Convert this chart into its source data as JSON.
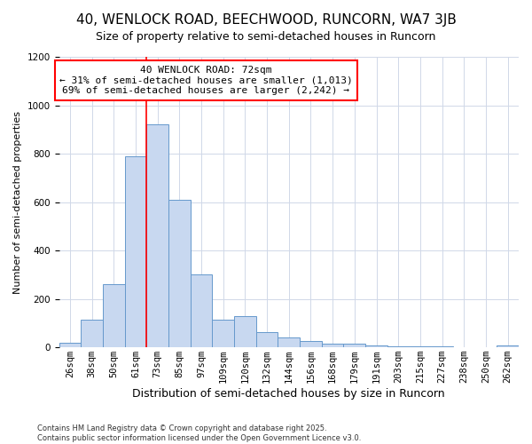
{
  "title": "40, WENLOCK ROAD, BEECHWOOD, RUNCORN, WA7 3JB",
  "subtitle": "Size of property relative to semi-detached houses in Runcorn",
  "xlabel": "Distribution of semi-detached houses by size in Runcorn",
  "ylabel": "Number of semi-detached properties",
  "bar_color": "#c8d8f0",
  "bar_edge_color": "#6699cc",
  "categories": [
    "26sqm",
    "38sqm",
    "50sqm",
    "61sqm",
    "73sqm",
    "85sqm",
    "97sqm",
    "109sqm",
    "120sqm",
    "132sqm",
    "144sqm",
    "156sqm",
    "168sqm",
    "179sqm",
    "191sqm",
    "203sqm",
    "215sqm",
    "227sqm",
    "238sqm",
    "250sqm",
    "262sqm"
  ],
  "values": [
    20,
    115,
    260,
    790,
    920,
    610,
    300,
    115,
    130,
    62,
    40,
    25,
    15,
    15,
    8,
    5,
    5,
    3,
    2,
    2,
    8
  ],
  "ylim": [
    0,
    1200
  ],
  "yticks": [
    0,
    200,
    400,
    600,
    800,
    1000,
    1200
  ],
  "annotation_title": "40 WENLOCK ROAD: 72sqm",
  "annotation_line1": "← 31% of semi-detached houses are smaller (1,013)",
  "annotation_line2": "69% of semi-detached houses are larger (2,242) →",
  "red_line_bin_index": 4,
  "footnote1": "Contains HM Land Registry data © Crown copyright and database right 2025.",
  "footnote2": "Contains public sector information licensed under the Open Government Licence v3.0.",
  "bg_color": "#ffffff",
  "plot_bg_color": "#ffffff",
  "grid_color": "#d0d8e8",
  "title_fontsize": 11,
  "subtitle_fontsize": 9,
  "ylabel_fontsize": 8,
  "xlabel_fontsize": 9,
  "tick_fontsize": 7.5,
  "annotation_fontsize": 8,
  "footnote_fontsize": 6
}
